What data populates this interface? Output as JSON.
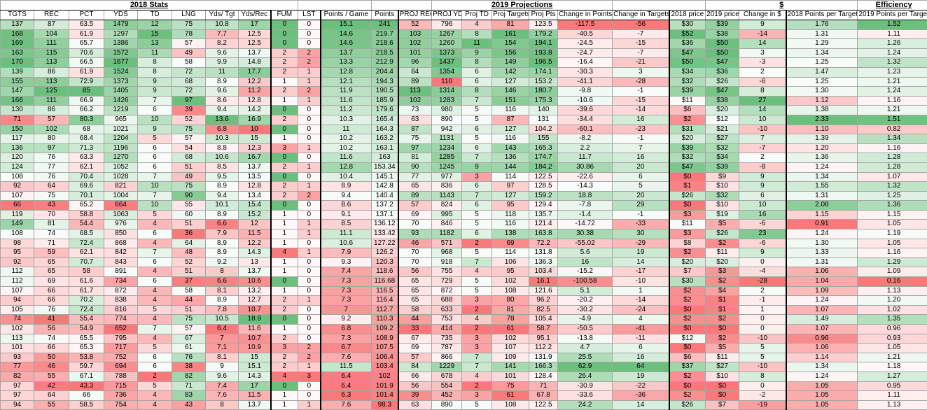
{
  "groups": [
    {
      "label": "2018 Stats",
      "span": 9
    },
    {
      "label": "",
      "span": 2
    },
    {
      "label": "",
      "span": 2
    },
    {
      "label": "2019 Projections",
      "span": 5
    },
    {
      "label": "",
      "span": 2
    },
    {
      "label": "$",
      "span": 3
    },
    {
      "label": "Efficiency",
      "span": 2
    }
  ],
  "columns": [
    "TGTS",
    "REC",
    "PCT",
    "YDS",
    "TD",
    "LNG",
    "Yds/ Tgt",
    "Yds/Rec",
    "FUM",
    "LST",
    "Points / Game",
    "Points",
    "PROJ REC",
    "PROJ YDS",
    "Proj TD",
    "Proj Targets",
    "Proj Pts",
    "Change in Points",
    "Change in Targets",
    "2018 price",
    "2019 price",
    "Change in $",
    "2018 Points per Target",
    "2019 Points per Target"
  ],
  "rows": [
    [
      "137",
      "87",
      "63.5",
      "1479",
      "12",
      "75",
      "10.8",
      "17",
      "0",
      "0",
      "15.1",
      "241",
      "52",
      "796",
      "4",
      "81",
      "123.5",
      "-117.5",
      "-56",
      "$30",
      "$39",
      "9",
      "1.76",
      "1.52"
    ],
    [
      "168",
      "104",
      "61.9",
      "1297",
      "15",
      "78",
      "7.7",
      "12.5",
      "0",
      "0",
      "14.6",
      "219.7",
      "103",
      "1267",
      "8",
      "161",
      "179.2",
      "-40.5",
      "-7",
      "$52",
      "$38",
      "-14",
      "1.31",
      "1.11"
    ],
    [
      "169",
      "111",
      "65.7",
      "1386",
      "13",
      "57",
      "8.2",
      "12.5",
      "0",
      "0",
      "14.6",
      "218.6",
      "102",
      "1260",
      "11",
      "154",
      "194.1",
      "-24.5",
      "-15",
      "$36",
      "$50",
      "14",
      "1.29",
      "1.26"
    ],
    [
      "163",
      "115",
      "70.6",
      "1572",
      "11",
      "49",
      "9.6",
      "13.7",
      "2",
      "2",
      "13.7",
      "218.5",
      "101",
      "1373",
      "9",
      "156",
      "193.8",
      "-24.7",
      "-7",
      "$47",
      "$50",
      "3",
      "1.34",
      "1.24"
    ],
    [
      "170",
      "113",
      "66.5",
      "1677",
      "8",
      "58",
      "9.9",
      "14.8",
      "2",
      "2",
      "13.3",
      "212.9",
      "96",
      "1437",
      "8",
      "149",
      "196.5",
      "-16.4",
      "-21",
      "$50",
      "$47",
      "-3",
      "1.25",
      "1.32"
    ],
    [
      "139",
      "86",
      "61.9",
      "1524",
      "8",
      "72",
      "11",
      "17.7",
      "2",
      "1",
      "12.8",
      "204.4",
      "84",
      "1354",
      "6",
      "142",
      "174.1",
      "-30.3",
      "3",
      "$34",
      "$36",
      "2",
      "1.47",
      "1.23"
    ],
    [
      "155",
      "113",
      "72.9",
      "1373",
      "9",
      "68",
      "8.9",
      "12.2",
      "1",
      "1",
      "12.1",
      "194.3",
      "89",
      "110",
      "6",
      "127",
      "153.2",
      "-41.1",
      "-28",
      "$32",
      "$26",
      "-6",
      "1.25",
      "1.21"
    ],
    [
      "147",
      "125",
      "85",
      "1405",
      "9",
      "72",
      "9.6",
      "11.2",
      "2",
      "2",
      "11.9",
      "190.5",
      "113",
      "1314",
      "8",
      "146",
      "180.7",
      "-9.8",
      "-1",
      "$39",
      "$47",
      "8",
      "1.30",
      "1.24"
    ],
    [
      "166",
      "111",
      "66.9",
      "1426",
      "7",
      "97",
      "8.6",
      "12.8",
      "1",
      "1",
      "11.6",
      "185.9",
      "102",
      "1283",
      "7",
      "151",
      "175.3",
      "-10.6",
      "-15",
      "$11",
      "$38",
      "27",
      "1.12",
      "1.16"
    ],
    [
      "130",
      "86",
      "66.2",
      "1219",
      "6",
      "39",
      "9.4",
      "14.2",
      "0",
      "0",
      "11.2",
      "179.6",
      "73",
      "980",
      "5",
      "116",
      "140",
      "-39.6",
      "-14",
      "$6",
      "$20",
      "14",
      "1.38",
      "1.21"
    ],
    [
      "71",
      "57",
      "80.3",
      "965",
      "10",
      "52",
      "13.6",
      "16.9",
      "2",
      "0",
      "10.3",
      "165.4",
      "63",
      "890",
      "5",
      "87",
      "131",
      "-34.4",
      "16",
      "$2",
      "$12",
      "10",
      "2.33",
      "1.51"
    ],
    [
      "150",
      "102",
      "68",
      "1021",
      "9",
      "75",
      "6.8",
      "10",
      "0",
      "0",
      "11",
      "164.3",
      "87",
      "942",
      "6",
      "127",
      "104.2",
      "-60.1",
      "-23",
      "$31",
      "$21",
      "-10",
      "1.10",
      "0.82"
    ],
    [
      "117",
      "80",
      "68.4",
      "1204",
      "5",
      "57",
      "10.3",
      "15",
      "1",
      "0",
      "10.2",
      "163.2",
      "75",
      "1131",
      "5",
      "116",
      "155",
      "-8.2",
      "-1",
      "$20",
      "$27",
      "7",
      "1.39",
      "1.34"
    ],
    [
      "136",
      "97",
      "71.3",
      "1196",
      "6",
      "54",
      "8.8",
      "12.3",
      "3",
      "1",
      "10.2",
      "163.1",
      "97",
      "1234",
      "6",
      "143",
      "165.3",
      "2.2",
      "7",
      "$39",
      "$32",
      "-7",
      "1.20",
      "1.16"
    ],
    [
      "120",
      "76",
      "63.3",
      "1270",
      "6",
      "68",
      "10.6",
      "16.7",
      "0",
      "0",
      "11.6",
      "163",
      "81",
      "1285",
      "7",
      "136",
      "174.7",
      "11.7",
      "16",
      "$32",
      "$34",
      "2",
      "1.36",
      "1.28"
    ],
    [
      "124",
      "77",
      "62.1",
      "1052",
      "6",
      "51",
      "8.5",
      "13.7",
      "2",
      "1",
      "12.8",
      "153.34",
      "90",
      "1245",
      "9",
      "144",
      "184.2",
      "30.86",
      "20",
      "$47",
      "$39",
      "-8",
      "1.24",
      "1.28"
    ],
    [
      "108",
      "76",
      "70.4",
      "1028",
      "7",
      "49",
      "9.5",
      "13.5",
      "0",
      "0",
      "10.4",
      "145.1",
      "77",
      "977",
      "3",
      "114",
      "122.5",
      "-22.6",
      "6",
      "$0",
      "$9",
      "9",
      "1.34",
      "1.07"
    ],
    [
      "92",
      "64",
      "69.6",
      "821",
      "10",
      "75",
      "8.9",
      "12.8",
      "2",
      "1",
      "8.9",
      "142.8",
      "65",
      "836",
      "6",
      "97",
      "128.5",
      "-14.3",
      "5",
      "$1",
      "$10",
      "9",
      "1.55",
      "1.32"
    ],
    [
      "107",
      "75",
      "70.1",
      "1004",
      "7",
      "90",
      "9.4",
      "13.4",
      "2",
      "2",
      "9.4",
      "140.4",
      "89",
      "1143",
      "7",
      "127",
      "159.2",
      "18.8",
      "20",
      "$26",
      "$32",
      "6",
      "1.31",
      "1.25"
    ],
    [
      "66",
      "43",
      "65.2",
      "664",
      "10",
      "55",
      "10.1",
      "15.4",
      "0",
      "0",
      "8.6",
      "137.2",
      "57",
      "824",
      "6",
      "95",
      "129.4",
      "-7.8",
      "29",
      "$0",
      "$10",
      "10",
      "2.08",
      "1.36"
    ],
    [
      "119",
      "70",
      "58.8",
      "1063",
      "5",
      "60",
      "8.9",
      "15.2",
      "1",
      "0",
      "9.1",
      "137.1",
      "69",
      "995",
      "5",
      "118",
      "135.7",
      "-1.4",
      "-1",
      "$3",
      "$19",
      "16",
      "1.15",
      "1.15"
    ],
    [
      "149",
      "81",
      "54.4",
      "976",
      "4",
      "51",
      "6.6",
      "12",
      "1",
      "1",
      "8.5",
      "136.12",
      "70",
      "846",
      "5",
      "116",
      "121.4",
      "-14.72",
      "-33",
      "$11",
      "$5",
      "-6",
      "0.91",
      "1.05"
    ],
    [
      "108",
      "74",
      "68.5",
      "850",
      "6",
      "36",
      "7.9",
      "11.5",
      "1",
      "1",
      "11.1",
      "133.42",
      "93",
      "1182",
      "6",
      "138",
      "163.8",
      "30.38",
      "30",
      "$3",
      "$26",
      "23",
      "1.24",
      "1.19"
    ],
    [
      "98",
      "71",
      "72.4",
      "868",
      "4",
      "64",
      "8.9",
      "12.2",
      "1",
      "0",
      "10.6",
      "127.22",
      "46",
      "571",
      "2",
      "69",
      "72.2",
      "-55.02",
      "-29",
      "$8",
      "$2",
      "-6",
      "1.30",
      "1.05"
    ],
    [
      "95",
      "59",
      "62.1",
      "842",
      "7",
      "48",
      "8.9",
      "14.3",
      "4",
      "1",
      "7.9",
      "126.2",
      "70",
      "968",
      "5",
      "114",
      "131.8",
      "5.6",
      "19",
      "$2",
      "$11",
      "9",
      "1.33",
      "1.16"
    ],
    [
      "92",
      "65",
      "70.7",
      "843",
      "6",
      "52",
      "9.2",
      "13",
      "1",
      "0",
      "9.3",
      "120.3",
      "70",
      "918",
      "7",
      "106",
      "136.3",
      "16",
      "14",
      "$20",
      "$20",
      "0",
      "1.31",
      "1.29"
    ],
    [
      "112",
      "65",
      "58",
      "891",
      "4",
      "51",
      "8",
      "13.7",
      "1",
      "0",
      "7.4",
      "118.6",
      "56",
      "755",
      "4",
      "95",
      "103.4",
      "-15.2",
      "-17",
      "$7",
      "$3",
      "-4",
      "1.06",
      "1.09"
    ],
    [
      "112",
      "69",
      "61.6",
      "734",
      "6",
      "37",
      "6.6",
      "10.6",
      "0",
      "0",
      "7.3",
      "116.68",
      "65",
      "729",
      "5",
      "102",
      "16.1",
      "-100.58",
      "-10",
      "$30",
      "$2",
      "-28",
      "1.04",
      "0.16"
    ],
    [
      "107",
      "66",
      "61.7",
      "872",
      "4",
      "58",
      "8.1",
      "13.2",
      "1",
      "0",
      "7.3",
      "116.5",
      "65",
      "872",
      "5",
      "108",
      "121.6",
      "5.1",
      "1",
      "$2",
      "$4",
      "2",
      "1.09",
      "1.13"
    ],
    [
      "94",
      "66",
      "70.2",
      "838",
      "4",
      "44",
      "8.9",
      "12.7",
      "2",
      "1",
      "7.3",
      "116.4",
      "65",
      "688",
      "3",
      "80",
      "96.2",
      "-20.2",
      "-14",
      "$2",
      "$1",
      "-1",
      "1.24",
      "1.20"
    ],
    [
      "105",
      "76",
      "72.4",
      "816",
      "5",
      "51",
      "7.8",
      "10.7",
      "2",
      "0",
      "7",
      "112.7",
      "58",
      "633",
      "2",
      "81",
      "82.5",
      "-30.2",
      "-24",
      "$0",
      "$1",
      "1",
      "1.07",
      "1.02"
    ],
    [
      "74",
      "41",
      "55.4",
      "774",
      "4",
      "75",
      "10.5",
      "18.9",
      "0",
      "0",
      "9.2",
      "110.3",
      "44",
      "753",
      "4",
      "78",
      "105.4",
      "-4.9",
      "4",
      "$2",
      "$2",
      "0",
      "1.49",
      "1.35"
    ],
    [
      "102",
      "56",
      "54.9",
      "652",
      "7",
      "57",
      "6.4",
      "11.6",
      "1",
      "0",
      "6.8",
      "109.2",
      "33",
      "414",
      "2",
      "61",
      "58.7",
      "-50.5",
      "-41",
      "$0",
      "$0",
      "0",
      "1.07",
      "0.96"
    ],
    [
      "113",
      "74",
      "65.5",
      "795",
      "4",
      "67",
      "7",
      "10.7",
      "2",
      "0",
      "7.3",
      "108.9",
      "67",
      "735",
      "3",
      "102",
      "95.1",
      "-13.8",
      "-11",
      "$12",
      "$2",
      "-10",
      "0.96",
      "0.93"
    ],
    [
      "101",
      "66",
      "65.3",
      "717",
      "5",
      "61",
      "7.1",
      "10.9",
      "3",
      "2",
      "6.7",
      "107.5",
      "69",
      "787",
      "3",
      "107",
      "112.2",
      "4.7",
      "6",
      "$0",
      "$5",
      "5",
      "1.06",
      "1.05"
    ],
    [
      "93",
      "50",
      "53.8",
      "752",
      "6",
      "76",
      "8.1",
      "15",
      "2",
      "2",
      "7.6",
      "106.4",
      "57",
      "866",
      "7",
      "109",
      "131.9",
      "25.5",
      "16",
      "$6",
      "$11",
      "5",
      "1.14",
      "1.21"
    ],
    [
      "77",
      "46",
      "59.7",
      "694",
      "6",
      "38",
      "9",
      "15.1",
      "2",
      "1",
      "11.5",
      "103.4",
      "84",
      "1229",
      "7",
      "141",
      "166.3",
      "62.9",
      "64",
      "$37",
      "$27",
      "-10",
      "1.34",
      "1.18"
    ],
    [
      "82",
      "55",
      "67.1",
      "788",
      "2",
      "82",
      "9.6",
      "14.3",
      "4",
      "3",
      "6.4",
      "102",
      "66",
      "678",
      "4",
      "101",
      "128.4",
      "26.4",
      "19",
      "$2",
      "$10",
      "8",
      "1.24",
      "1.27"
    ],
    [
      "97",
      "42",
      "43.3",
      "715",
      "5",
      "71",
      "7.4",
      "17",
      "0",
      "0",
      "6.4",
      "101.9",
      "56",
      "554",
      "2",
      "75",
      "71",
      "-30.9",
      "-22",
      "$0",
      "$0",
      "0",
      "1.05",
      "0.95"
    ],
    [
      "97",
      "64",
      "66",
      "736",
      "4",
      "83",
      "7.6",
      "11.5",
      "1",
      "0",
      "6.3",
      "101.4",
      "39",
      "452",
      "3",
      "61",
      "67.8",
      "-33.6",
      "-36",
      "$2",
      "$0",
      "-2",
      "1.05",
      "1.11"
    ],
    [
      "94",
      "55",
      "58.5",
      "754",
      "4",
      "43",
      "8",
      "13.7",
      "1",
      "1",
      "7.6",
      "98.3",
      "63",
      "890",
      "5",
      "108",
      "122.5",
      "24.2",
      "14",
      "$26",
      "$7",
      "-19",
      "1.05",
      "1.13"
    ]
  ],
  "colors": {
    "hi": "#5cb96f",
    "lo": "#f8696b",
    "mid": "#ffffff"
  },
  "scales": [
    {
      "cols": [
        16
      ],
      "hi": "max"
    },
    {
      "cols": [
        17
      ],
      "hi": "max"
    },
    {
      "cols": [
        18
      ],
      "hi": "max"
    },
    {
      "cols": [
        21
      ],
      "hi": "max"
    },
    {
      "cols": [
        22
      ],
      "hi": "max"
    },
    {
      "cols": [
        23
      ],
      "hi": "max"
    },
    {
      "cols": [
        6
      ],
      "hi": "max"
    },
    {
      "cols": [
        7
      ],
      "hi": "max"
    },
    {
      "cols": [
        8
      ],
      "hi": "min"
    },
    {
      "cols": [
        9
      ],
      "hi": "min"
    }
  ]
}
